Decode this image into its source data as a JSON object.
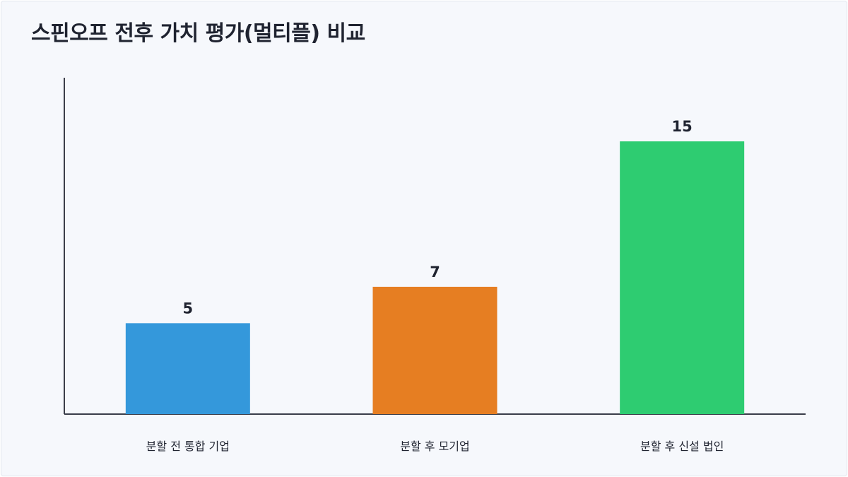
{
  "chart_data": {
    "type": "bar",
    "title": "스핀오프 전후 가치 평가(멀티플) 비교",
    "categories": [
      "분할 전 통합 기업",
      "분할 후 모기업",
      "분할 후 신설 법인"
    ],
    "values": [
      5,
      7,
      15
    ],
    "colors": [
      "#3498db",
      "#e67e22",
      "#2ecc71"
    ],
    "ylim": [
      0,
      18.5
    ],
    "grid": false,
    "legend": "none",
    "xlabel": "",
    "ylabel": ""
  }
}
